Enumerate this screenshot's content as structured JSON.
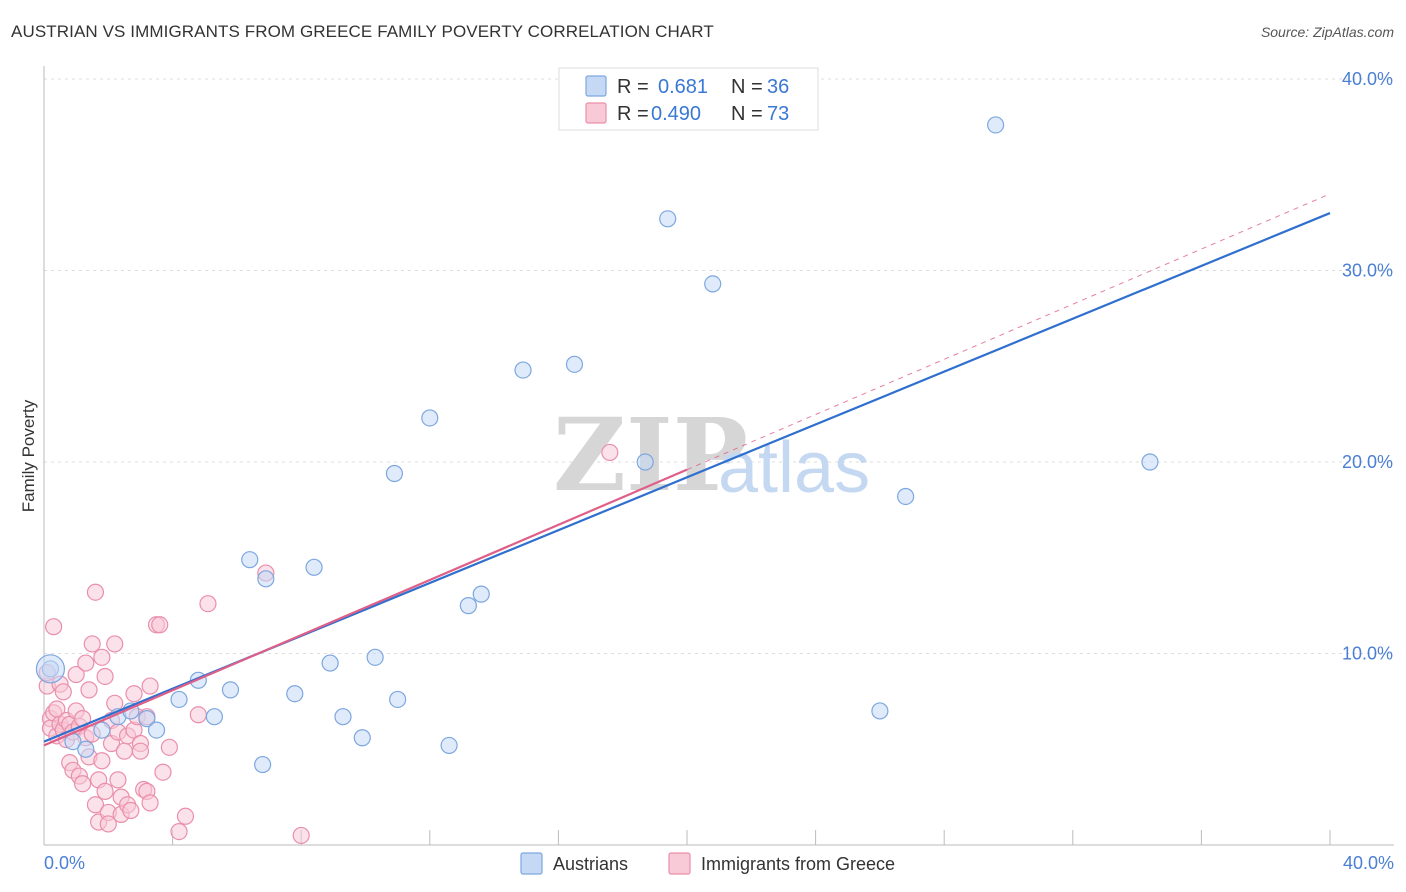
{
  "header": {
    "title": "AUSTRIAN VS IMMIGRANTS FROM GREECE FAMILY POVERTY CORRELATION CHART",
    "source": "Source: ZipAtlas.com"
  },
  "watermark": {
    "part1": "ZIP",
    "part2": "atlas"
  },
  "colors": {
    "blue_fill": "#c5d9f5",
    "blue_stroke": "#7da7df",
    "blue_line": "#2f6fce",
    "pink_fill": "#f8c9d7",
    "pink_stroke": "#ea8fab",
    "pink_line": "#de5f88",
    "grid": "#dddddd",
    "tick_text": "#4a7fd4"
  },
  "legend": {
    "series": [
      {
        "r_label": "R =",
        "r_value": "0.681",
        "n_label": "N =",
        "n_value": "36"
      },
      {
        "r_label": "R =",
        "r_value": "0.490",
        "n_label": "N =",
        "n_value": "73"
      }
    ]
  },
  "bottom_legend": {
    "items": [
      "Austrians",
      "Immigrants from Greece"
    ]
  },
  "chart_data": {
    "type": "scatter",
    "title": "AUSTRIAN VS IMMIGRANTS FROM GREECE FAMILY POVERTY CORRELATION CHART",
    "xlabel": "",
    "ylabel": "Family Poverty",
    "xlim": [
      0,
      40
    ],
    "ylim": [
      0,
      40
    ],
    "x_tick_labels": [
      "0.0%",
      "40.0%"
    ],
    "y_ticks": [
      10,
      20,
      30,
      40
    ],
    "y_tick_labels": [
      "10.0%",
      "20.0%",
      "30.0%",
      "40.0%"
    ],
    "series": [
      {
        "name": "Austrians",
        "R": 0.681,
        "N": 36,
        "trend": {
          "x0": 0,
          "y0": 5.4,
          "x1": 40,
          "y1": 33.0
        },
        "points": [
          [
            0.2,
            9.2
          ],
          [
            0.9,
            5.4
          ],
          [
            1.3,
            5.0
          ],
          [
            1.8,
            6.0
          ],
          [
            2.3,
            6.7
          ],
          [
            2.7,
            7.0
          ],
          [
            3.2,
            6.6
          ],
          [
            3.5,
            6.0
          ],
          [
            4.2,
            7.6
          ],
          [
            4.8,
            8.6
          ],
          [
            5.3,
            6.7
          ],
          [
            5.8,
            8.1
          ],
          [
            6.4,
            14.9
          ],
          [
            6.8,
            4.2
          ],
          [
            6.9,
            13.9
          ],
          [
            7.8,
            7.9
          ],
          [
            8.4,
            14.5
          ],
          [
            8.9,
            9.5
          ],
          [
            9.3,
            6.7
          ],
          [
            9.9,
            5.6
          ],
          [
            10.3,
            9.8
          ],
          [
            10.9,
            19.4
          ],
          [
            11.0,
            7.6
          ],
          [
            12.0,
            22.3
          ],
          [
            12.6,
            5.2
          ],
          [
            13.2,
            12.5
          ],
          [
            13.6,
            13.1
          ],
          [
            14.9,
            24.8
          ],
          [
            16.5,
            25.1
          ],
          [
            18.7,
            20.0
          ],
          [
            19.4,
            32.7
          ],
          [
            20.8,
            29.3
          ],
          [
            26.0,
            7.0
          ],
          [
            26.8,
            18.2
          ],
          [
            29.6,
            37.6
          ],
          [
            34.4,
            20.0
          ]
        ]
      },
      {
        "name": "Immigrants from Greece",
        "R": 0.49,
        "N": 73,
        "trend": {
          "x0": 0,
          "y0": 5.2,
          "x1": 20,
          "y1": 19.6,
          "dashed_to_x": 40,
          "dashed_to_y": 34.0
        },
        "points": [
          [
            0.1,
            8.3
          ],
          [
            0.1,
            9.0
          ],
          [
            0.2,
            6.6
          ],
          [
            0.2,
            6.1
          ],
          [
            0.3,
            11.4
          ],
          [
            0.3,
            6.9
          ],
          [
            0.4,
            5.7
          ],
          [
            0.4,
            7.1
          ],
          [
            0.5,
            8.4
          ],
          [
            0.5,
            6.3
          ],
          [
            0.6,
            6.0
          ],
          [
            0.6,
            8.0
          ],
          [
            0.7,
            5.5
          ],
          [
            0.7,
            6.5
          ],
          [
            0.8,
            6.3
          ],
          [
            0.8,
            4.3
          ],
          [
            0.9,
            5.9
          ],
          [
            0.9,
            3.9
          ],
          [
            1.0,
            7.0
          ],
          [
            1.0,
            8.9
          ],
          [
            1.1,
            3.6
          ],
          [
            1.1,
            6.2
          ],
          [
            1.2,
            6.6
          ],
          [
            1.2,
            3.2
          ],
          [
            1.3,
            5.6
          ],
          [
            1.3,
            9.5
          ],
          [
            1.4,
            8.1
          ],
          [
            1.4,
            4.6
          ],
          [
            1.5,
            10.5
          ],
          [
            1.5,
            5.8
          ],
          [
            1.6,
            13.2
          ],
          [
            1.6,
            2.1
          ],
          [
            1.7,
            3.4
          ],
          [
            1.7,
            1.2
          ],
          [
            1.8,
            9.8
          ],
          [
            1.8,
            4.4
          ],
          [
            1.9,
            2.8
          ],
          [
            1.9,
            8.8
          ],
          [
            2.0,
            1.7
          ],
          [
            2.0,
            1.1
          ],
          [
            2.1,
            5.3
          ],
          [
            2.1,
            6.5
          ],
          [
            2.2,
            10.5
          ],
          [
            2.2,
            7.4
          ],
          [
            2.3,
            5.9
          ],
          [
            2.3,
            3.4
          ],
          [
            2.4,
            1.6
          ],
          [
            2.4,
            2.5
          ],
          [
            2.5,
            4.9
          ],
          [
            2.6,
            5.7
          ],
          [
            2.6,
            2.1
          ],
          [
            2.7,
            1.8
          ],
          [
            2.8,
            6.0
          ],
          [
            2.8,
            7.9
          ],
          [
            2.9,
            6.7
          ],
          [
            3.0,
            5.3
          ],
          [
            3.0,
            4.9
          ],
          [
            3.1,
            2.9
          ],
          [
            3.2,
            2.8
          ],
          [
            3.2,
            6.7
          ],
          [
            3.3,
            8.3
          ],
          [
            3.3,
            2.2
          ],
          [
            3.5,
            11.5
          ],
          [
            3.6,
            11.5
          ],
          [
            3.7,
            3.8
          ],
          [
            3.9,
            5.1
          ],
          [
            4.2,
            0.7
          ],
          [
            4.4,
            1.5
          ],
          [
            4.8,
            6.8
          ],
          [
            5.1,
            12.6
          ],
          [
            6.9,
            14.2
          ],
          [
            8.0,
            0.5
          ],
          [
            17.6,
            20.5
          ]
        ]
      }
    ],
    "legend_position": "top-center",
    "grid": true
  }
}
